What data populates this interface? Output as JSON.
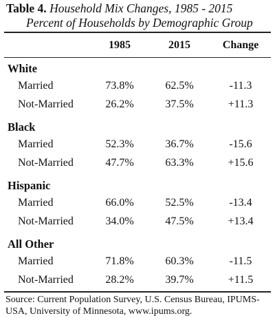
{
  "title": {
    "number": "Table 4.",
    "text": "Household Mix Changes, 1985 - 2015",
    "subtitle": "Percent of Households by Demographic Group"
  },
  "columns": [
    "1985",
    "2015",
    "Change"
  ],
  "groups": [
    {
      "label": "White",
      "rows": [
        {
          "label": "Married",
          "values": [
            "73.8%",
            "62.5%",
            "-11.3"
          ]
        },
        {
          "label": "Not-Married",
          "values": [
            "26.2%",
            "37.5%",
            "+11.3"
          ]
        }
      ]
    },
    {
      "label": "Black",
      "rows": [
        {
          "label": "Married",
          "values": [
            "52.3%",
            "36.7%",
            "-15.6"
          ]
        },
        {
          "label": "Not-Married",
          "values": [
            "47.7%",
            "63.3%",
            "+15.6"
          ]
        }
      ]
    },
    {
      "label": "Hispanic",
      "rows": [
        {
          "label": "Married",
          "values": [
            "66.0%",
            "52.5%",
            "-13.4"
          ]
        },
        {
          "label": "Not-Married",
          "values": [
            "34.0%",
            "47.5%",
            "+13.4"
          ]
        }
      ]
    },
    {
      "label": "All Other",
      "rows": [
        {
          "label": "Married",
          "values": [
            "71.8%",
            "60.3%",
            "-11.5"
          ]
        },
        {
          "label": "Not-Married",
          "values": [
            "28.2%",
            "39.7%",
            "+11.5"
          ]
        }
      ]
    }
  ],
  "source": "Source: Current Population Survey, U.S. Census Bureau, IPUMS-USA, University of Minnesota, www.ipums.org."
}
